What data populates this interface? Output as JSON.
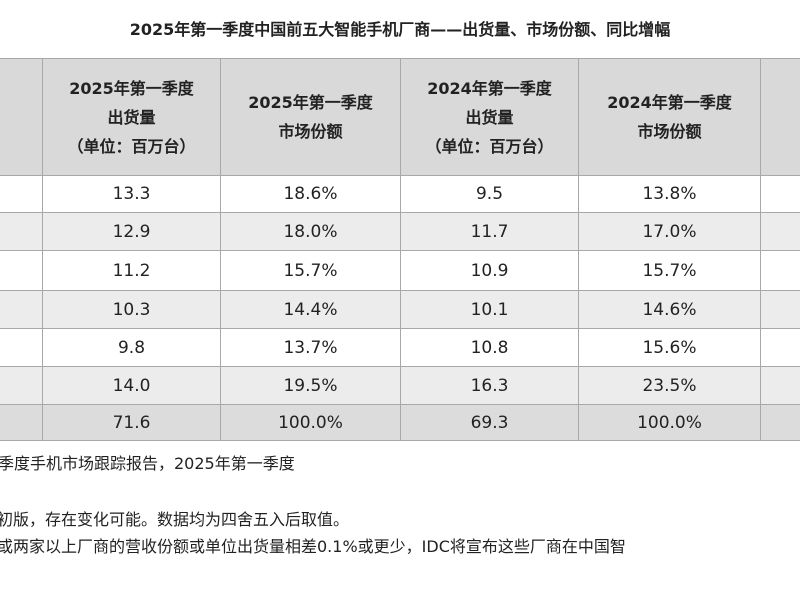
{
  "title": "2025年第一季度中国前五大智能手机厂商——出货量、市场份额、同比增幅",
  "table": {
    "headers": [
      [
        "2025年第一季度",
        "出货量",
        "（单位：百万台）"
      ],
      [
        "2025年第一季度",
        "市场份额"
      ],
      [
        "2024年第一季度",
        "出货量",
        "（单位：百万台）"
      ],
      [
        "2024年第一季度",
        "市场份额"
      ]
    ],
    "rows": [
      [
        "13.3",
        "18.6%",
        "9.5",
        "13.8%"
      ],
      [
        "12.9",
        "18.0%",
        "11.7",
        "17.0%"
      ],
      [
        "11.2",
        "15.7%",
        "10.9",
        "15.7%"
      ],
      [
        "10.3",
        "14.4%",
        "10.1",
        "14.6%"
      ],
      [
        "9.8",
        "13.7%",
        "10.8",
        "15.6%"
      ],
      [
        "14.0",
        "19.5%",
        "16.3",
        "23.5%"
      ],
      [
        "71.6",
        "100.0%",
        "69.3",
        "100.0%"
      ]
    ]
  },
  "notes": [
    "季度手机市场跟踪报告，2025年第一季度",
    "初版，存在变化可能。数据均为四舍五入后取值。",
    "或两家以上厂商的营收份额或单位出货量相差0.1%或更少，IDC将宣布这些厂商在中国智"
  ]
}
